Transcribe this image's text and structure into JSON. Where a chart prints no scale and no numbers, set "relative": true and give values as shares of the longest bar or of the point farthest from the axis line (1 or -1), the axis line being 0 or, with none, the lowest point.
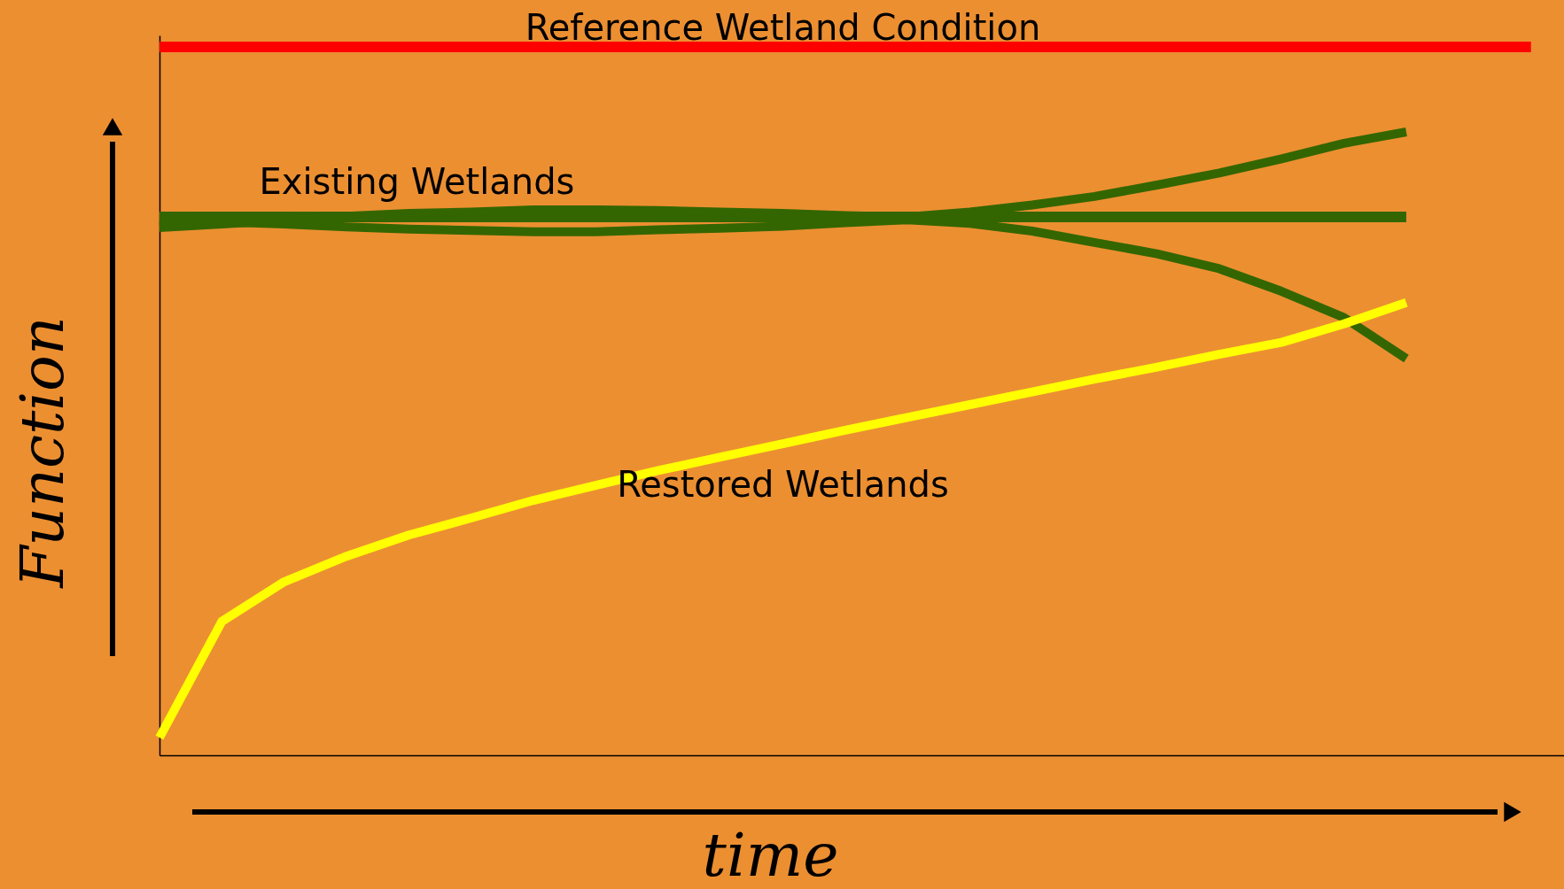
{
  "chart_data": {
    "type": "line",
    "relative": true,
    "xlabel": "time",
    "ylabel": "Function",
    "grid": false,
    "marker": "none",
    "line_style": "solid",
    "categories": [
      null,
      null,
      null,
      null,
      null,
      null,
      null,
      null,
      null,
      null,
      null,
      null,
      null,
      null,
      null,
      null,
      null,
      null,
      null,
      null,
      null,
      null,
      null
    ],
    "series": [
      {
        "name": "Reference Wetland Condition",
        "color": "#ff0000",
        "values": [
          1,
          1,
          1,
          1,
          1,
          1,
          1,
          1,
          1,
          1,
          1,
          1,
          1,
          1,
          1,
          1,
          1,
          1,
          1,
          1,
          1,
          1,
          1
        ]
      },
      {
        "name": "Existing Wetlands",
        "color": "#336600",
        "values": [
          0.76,
          0.76,
          0.76,
          0.76,
          0.76,
          0.76,
          0.76,
          0.76,
          0.76,
          0.76,
          0.76,
          0.76,
          0.76,
          0.76,
          0.76,
          0.76,
          0.76,
          0.76,
          0.76,
          0.76,
          0.76,
          null,
          null
        ]
      },
      {
        "color": "#336600",
        "values": [
          0.745,
          0.75,
          0.755,
          0.761,
          0.765,
          0.767,
          0.77,
          0.77,
          0.769,
          0.767,
          0.765,
          0.762,
          0.76,
          0.767,
          0.777,
          0.789,
          0.805,
          0.822,
          0.842,
          0.864,
          0.88,
          null,
          null
        ]
      },
      {
        "color": "#336600",
        "values": [
          0.757,
          0.753,
          0.75,
          0.746,
          0.743,
          0.741,
          0.739,
          0.739,
          0.742,
          0.744,
          0.747,
          0.752,
          0.756,
          0.751,
          0.74,
          0.724,
          0.708,
          0.687,
          0.655,
          0.618,
          0.56,
          null,
          null
        ]
      },
      {
        "name": "Restored Wetlands",
        "color": "#ffff00",
        "values": [
          0.025,
          0.189,
          0.245,
          0.281,
          0.311,
          0.335,
          0.36,
          0.381,
          0.402,
          0.421,
          0.44,
          0.459,
          0.477,
          0.495,
          0.513,
          0.531,
          0.548,
          0.566,
          0.583,
          0.609,
          0.639,
          null,
          null
        ]
      }
    ]
  }
}
